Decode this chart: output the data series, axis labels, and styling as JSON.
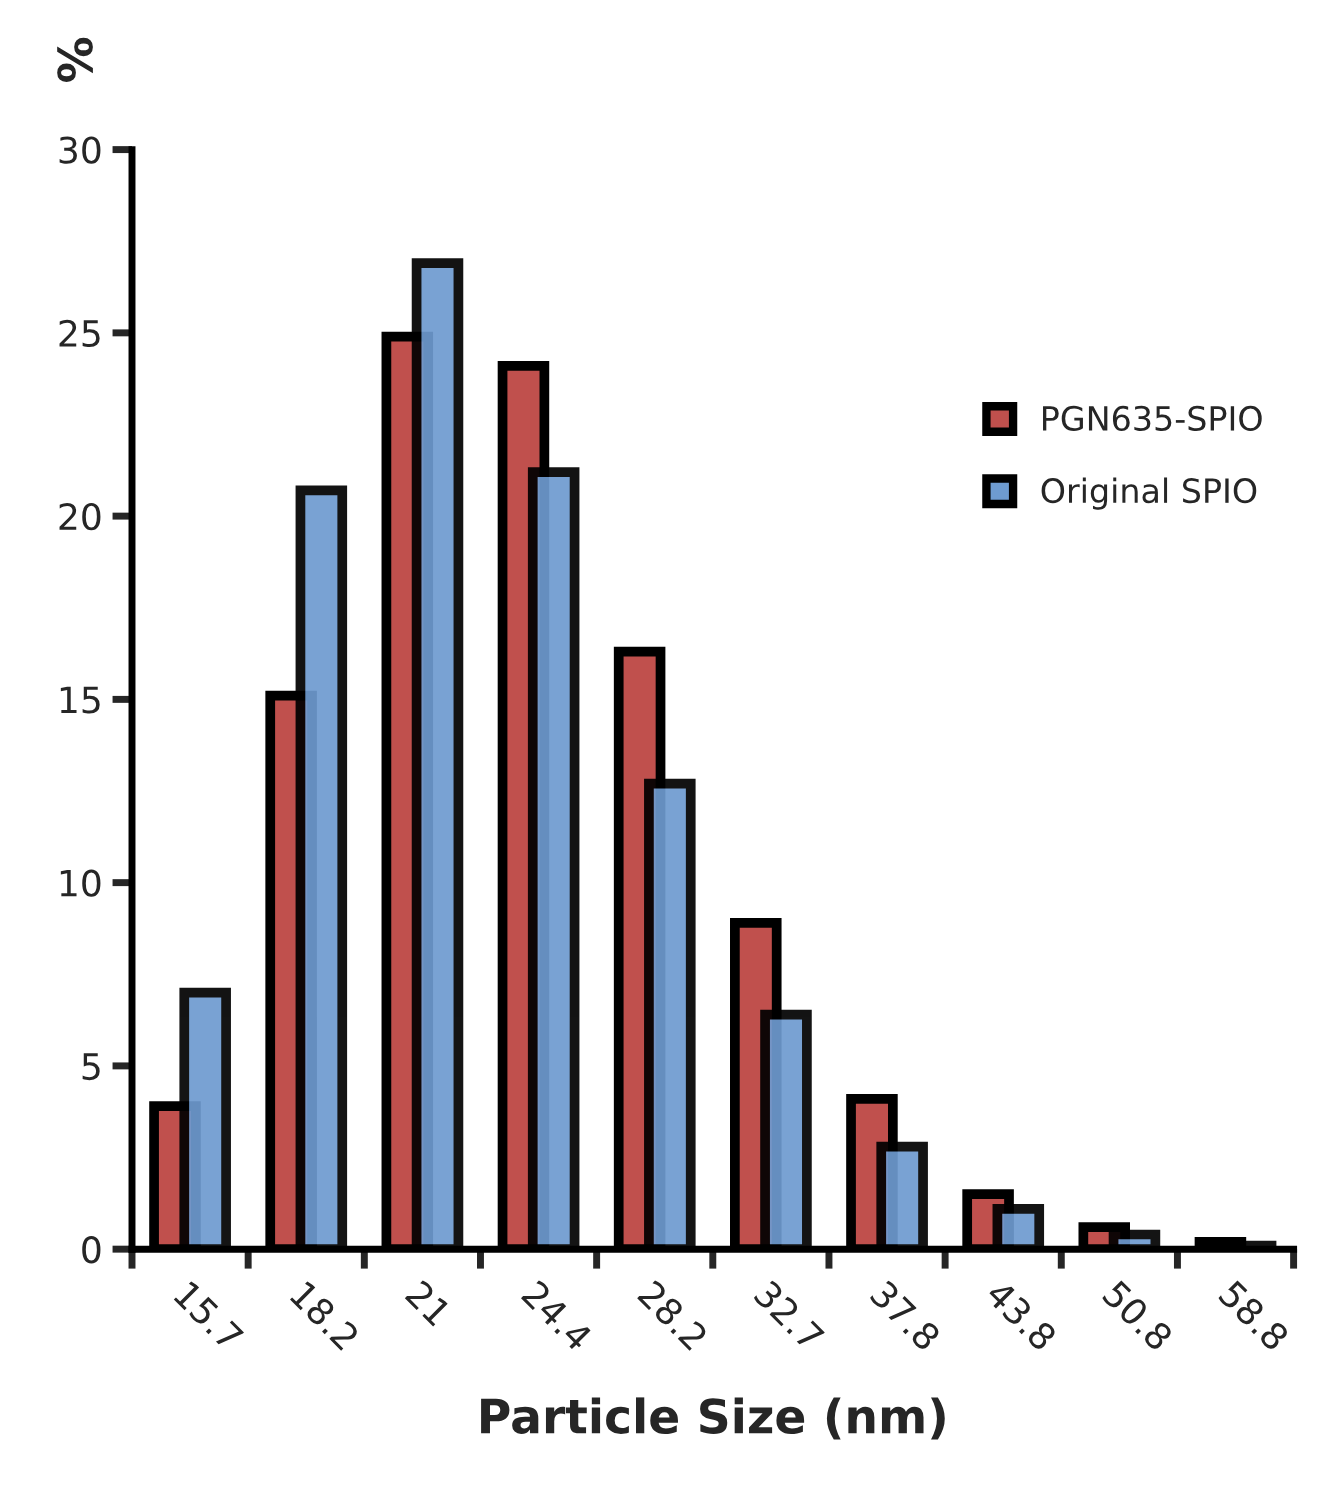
{
  "chart_data": {
    "type": "bar",
    "ylabel": "%",
    "xlabel": "Particle Size (nm)",
    "categories": [
      "15.7",
      "18.2",
      "21",
      "24.4",
      "28.2",
      "32.7",
      "37.8",
      "43.8",
      "50.8",
      "58.8"
    ],
    "series": [
      {
        "name": "PGN635-SPIO",
        "color": "#c0504d",
        "values": [
          3.9,
          15.1,
          24.9,
          24.1,
          16.3,
          8.9,
          4.1,
          1.5,
          0.6,
          0.2
        ]
      },
      {
        "name": "Original SPIO",
        "color": "#6e9bd0",
        "values": [
          7.0,
          20.7,
          26.9,
          21.2,
          12.7,
          6.4,
          2.8,
          1.1,
          0.4,
          0.1
        ]
      }
    ],
    "ylim": [
      0,
      30
    ],
    "yticks": [
      0,
      5,
      10,
      15,
      20,
      25,
      30
    ],
    "grid": false,
    "legend": "right"
  }
}
